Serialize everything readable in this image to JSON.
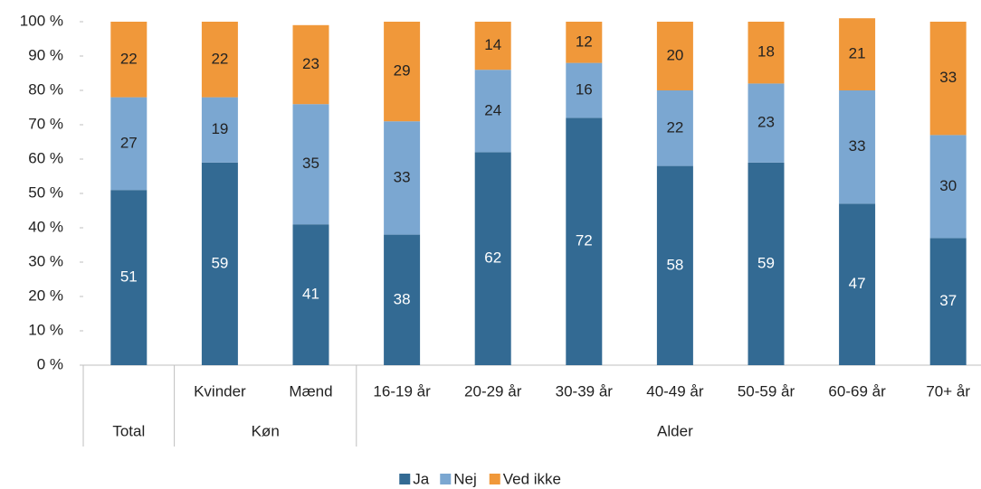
{
  "chart_data": {
    "type": "stacked_bar",
    "categories": [
      null,
      "Kvinder",
      "Mænd",
      "16-19 år",
      "20-29 år",
      "30-39 år",
      "40-49 år",
      "50-59 år",
      "60-69 år",
      "70+ år"
    ],
    "groups": [
      {
        "name": "Total",
        "count": 1
      },
      {
        "name": "Køn",
        "count": 2
      },
      {
        "name": "Alder",
        "count": 7
      }
    ],
    "series": [
      {
        "name": "Ja",
        "color": "#336a93",
        "values": [
          51,
          59,
          41,
          38,
          62,
          72,
          58,
          59,
          47,
          37
        ]
      },
      {
        "name": "Nej",
        "color": "#7ba7d1",
        "values": [
          27,
          19,
          35,
          33,
          24,
          16,
          22,
          23,
          33,
          30
        ]
      },
      {
        "name": "Ved ikke",
        "color": "#f0983a",
        "values": [
          22,
          22,
          23,
          29,
          14,
          12,
          20,
          18,
          21,
          33
        ]
      }
    ],
    "value_labels_color": [
      "#ffffff",
      "#222222",
      "#222222"
    ],
    "ylim": [
      0,
      100
    ],
    "yticks": [
      {
        "value": 0,
        "label": "0 %"
      },
      {
        "value": 10,
        "label": "10 %"
      },
      {
        "value": 20,
        "label": "20 %"
      },
      {
        "value": 30,
        "label": "30 %"
      },
      {
        "value": 40,
        "label": "40 %"
      },
      {
        "value": 50,
        "label": "50 %"
      },
      {
        "value": 60,
        "label": "60 %"
      },
      {
        "value": 70,
        "label": "70 %"
      },
      {
        "value": 80,
        "label": "80 %"
      },
      {
        "value": 90,
        "label": "90 %"
      },
      {
        "value": 100,
        "label": "100 %"
      }
    ],
    "grid": false,
    "legend": "bottom"
  }
}
